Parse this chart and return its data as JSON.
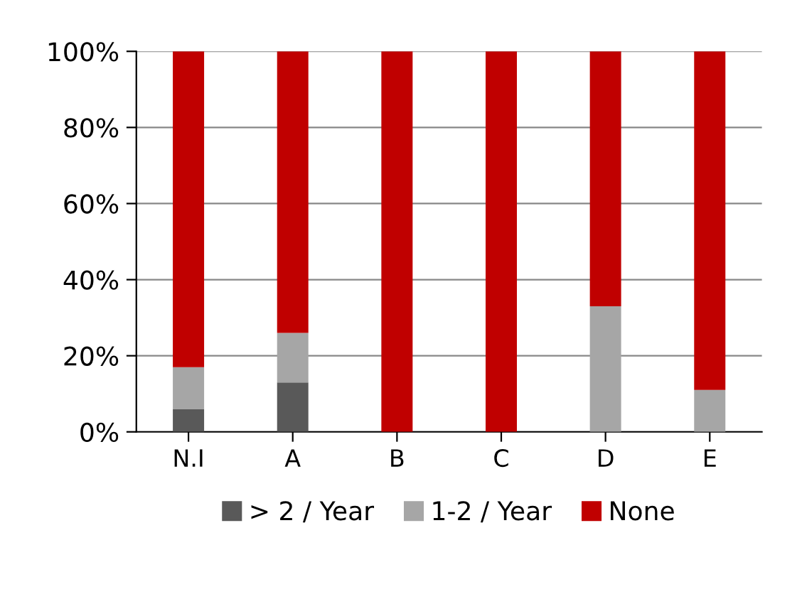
{
  "chart_data": {
    "type": "bar",
    "stacked": true,
    "categories": [
      "N.I",
      "A",
      "B",
      "C",
      "D",
      "E"
    ],
    "series": [
      {
        "name": "> 2 / Year",
        "color": "#595959",
        "values": [
          6,
          13,
          0,
          0,
          0,
          0
        ]
      },
      {
        "name": "1-2 / Year",
        "color": "#a6a6a6",
        "values": [
          11,
          13,
          0,
          0,
          33,
          11
        ]
      },
      {
        "name": "None",
        "color": "#c00000",
        "values": [
          83,
          74,
          100,
          100,
          67,
          89
        ]
      }
    ],
    "ylim": [
      0,
      100
    ],
    "yticks": [
      {
        "value": 0,
        "label": "0%"
      },
      {
        "value": 20,
        "label": "20%"
      },
      {
        "value": 40,
        "label": "40%"
      },
      {
        "value": 60,
        "label": "60%"
      },
      {
        "value": 80,
        "label": "80%"
      },
      {
        "value": 100,
        "label": "100%"
      }
    ],
    "grid": "y",
    "legend": "bottom"
  }
}
